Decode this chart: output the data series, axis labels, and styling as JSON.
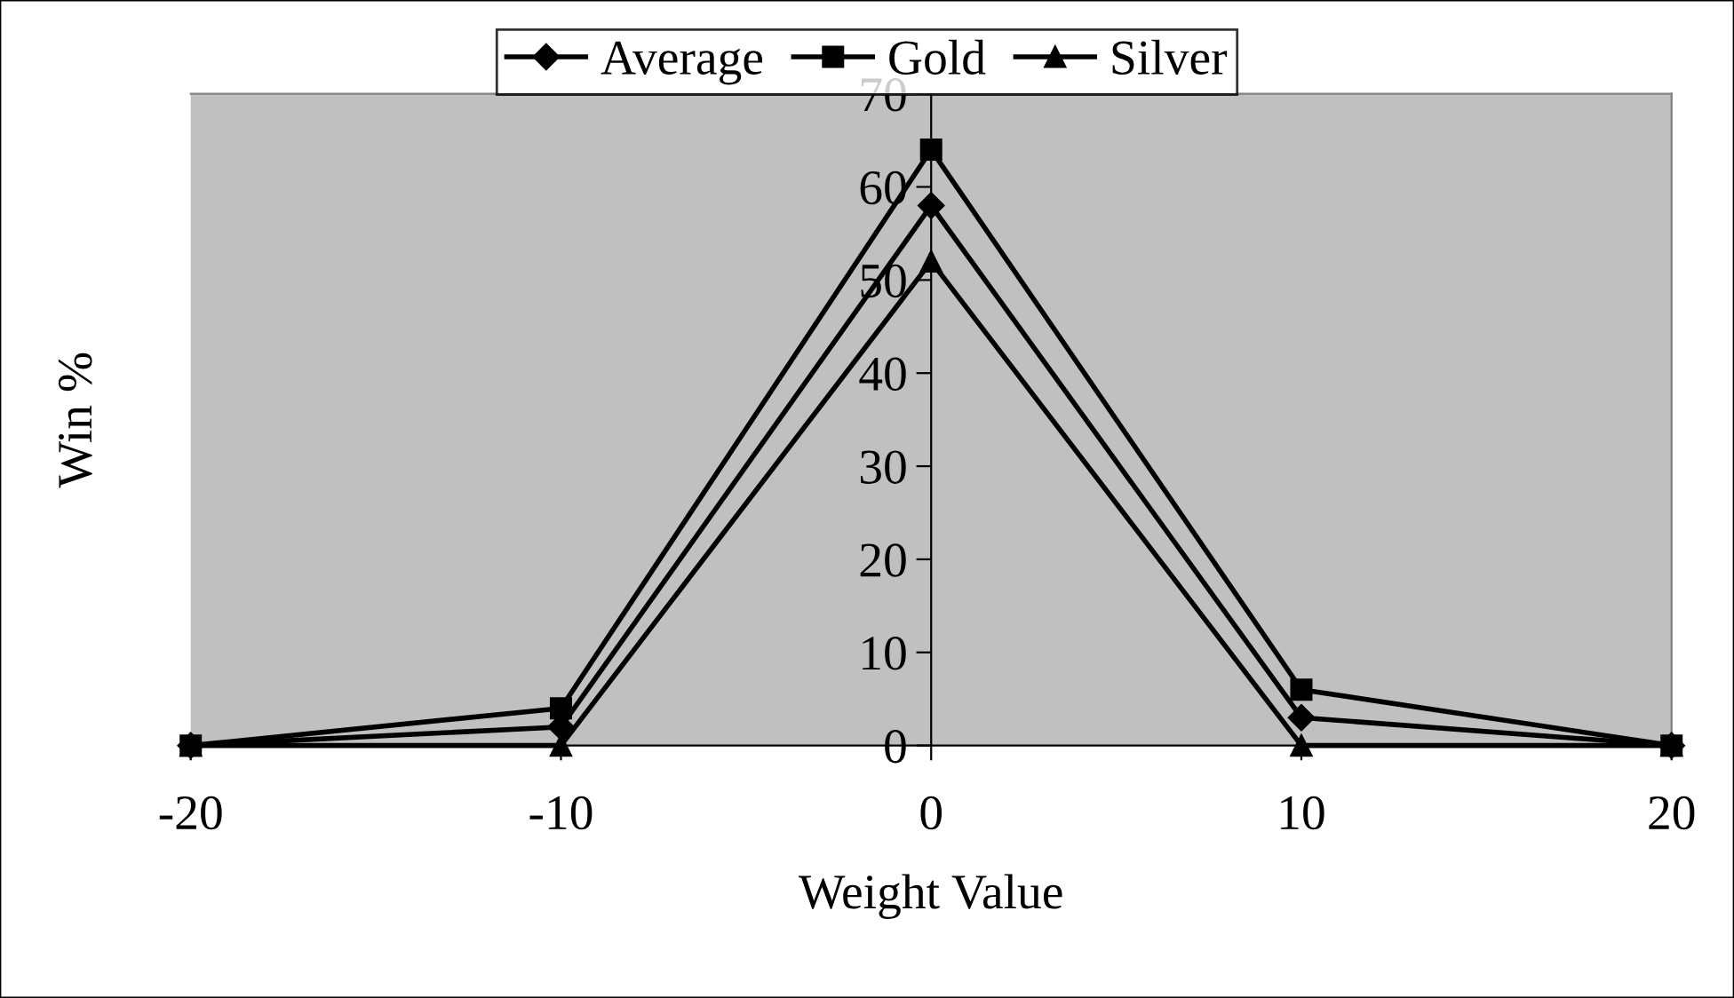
{
  "chart_data": {
    "type": "line",
    "xlabel": "Weight Value",
    "ylabel": "Win %",
    "x": [
      -20,
      -10,
      0,
      10,
      20
    ],
    "series": [
      {
        "name": "Average",
        "color": "#000000",
        "marker": "diamond",
        "values": [
          0,
          2,
          58,
          3,
          0
        ]
      },
      {
        "name": "Gold",
        "color": "#000000",
        "marker": "square",
        "values": [
          0,
          4,
          64,
          6,
          0
        ]
      },
      {
        "name": "Silver",
        "color": "#000000",
        "marker": "triangle",
        "values": [
          0,
          0,
          52,
          0,
          0
        ]
      }
    ],
    "xlim": [
      -20,
      20
    ],
    "xticks": [
      -20,
      -10,
      0,
      10,
      20
    ],
    "ylim": [
      0,
      70
    ],
    "yticks": [
      0,
      10,
      20,
      30,
      40,
      50,
      60,
      70
    ],
    "grid": false,
    "legend": "top",
    "line_style": "solid"
  }
}
